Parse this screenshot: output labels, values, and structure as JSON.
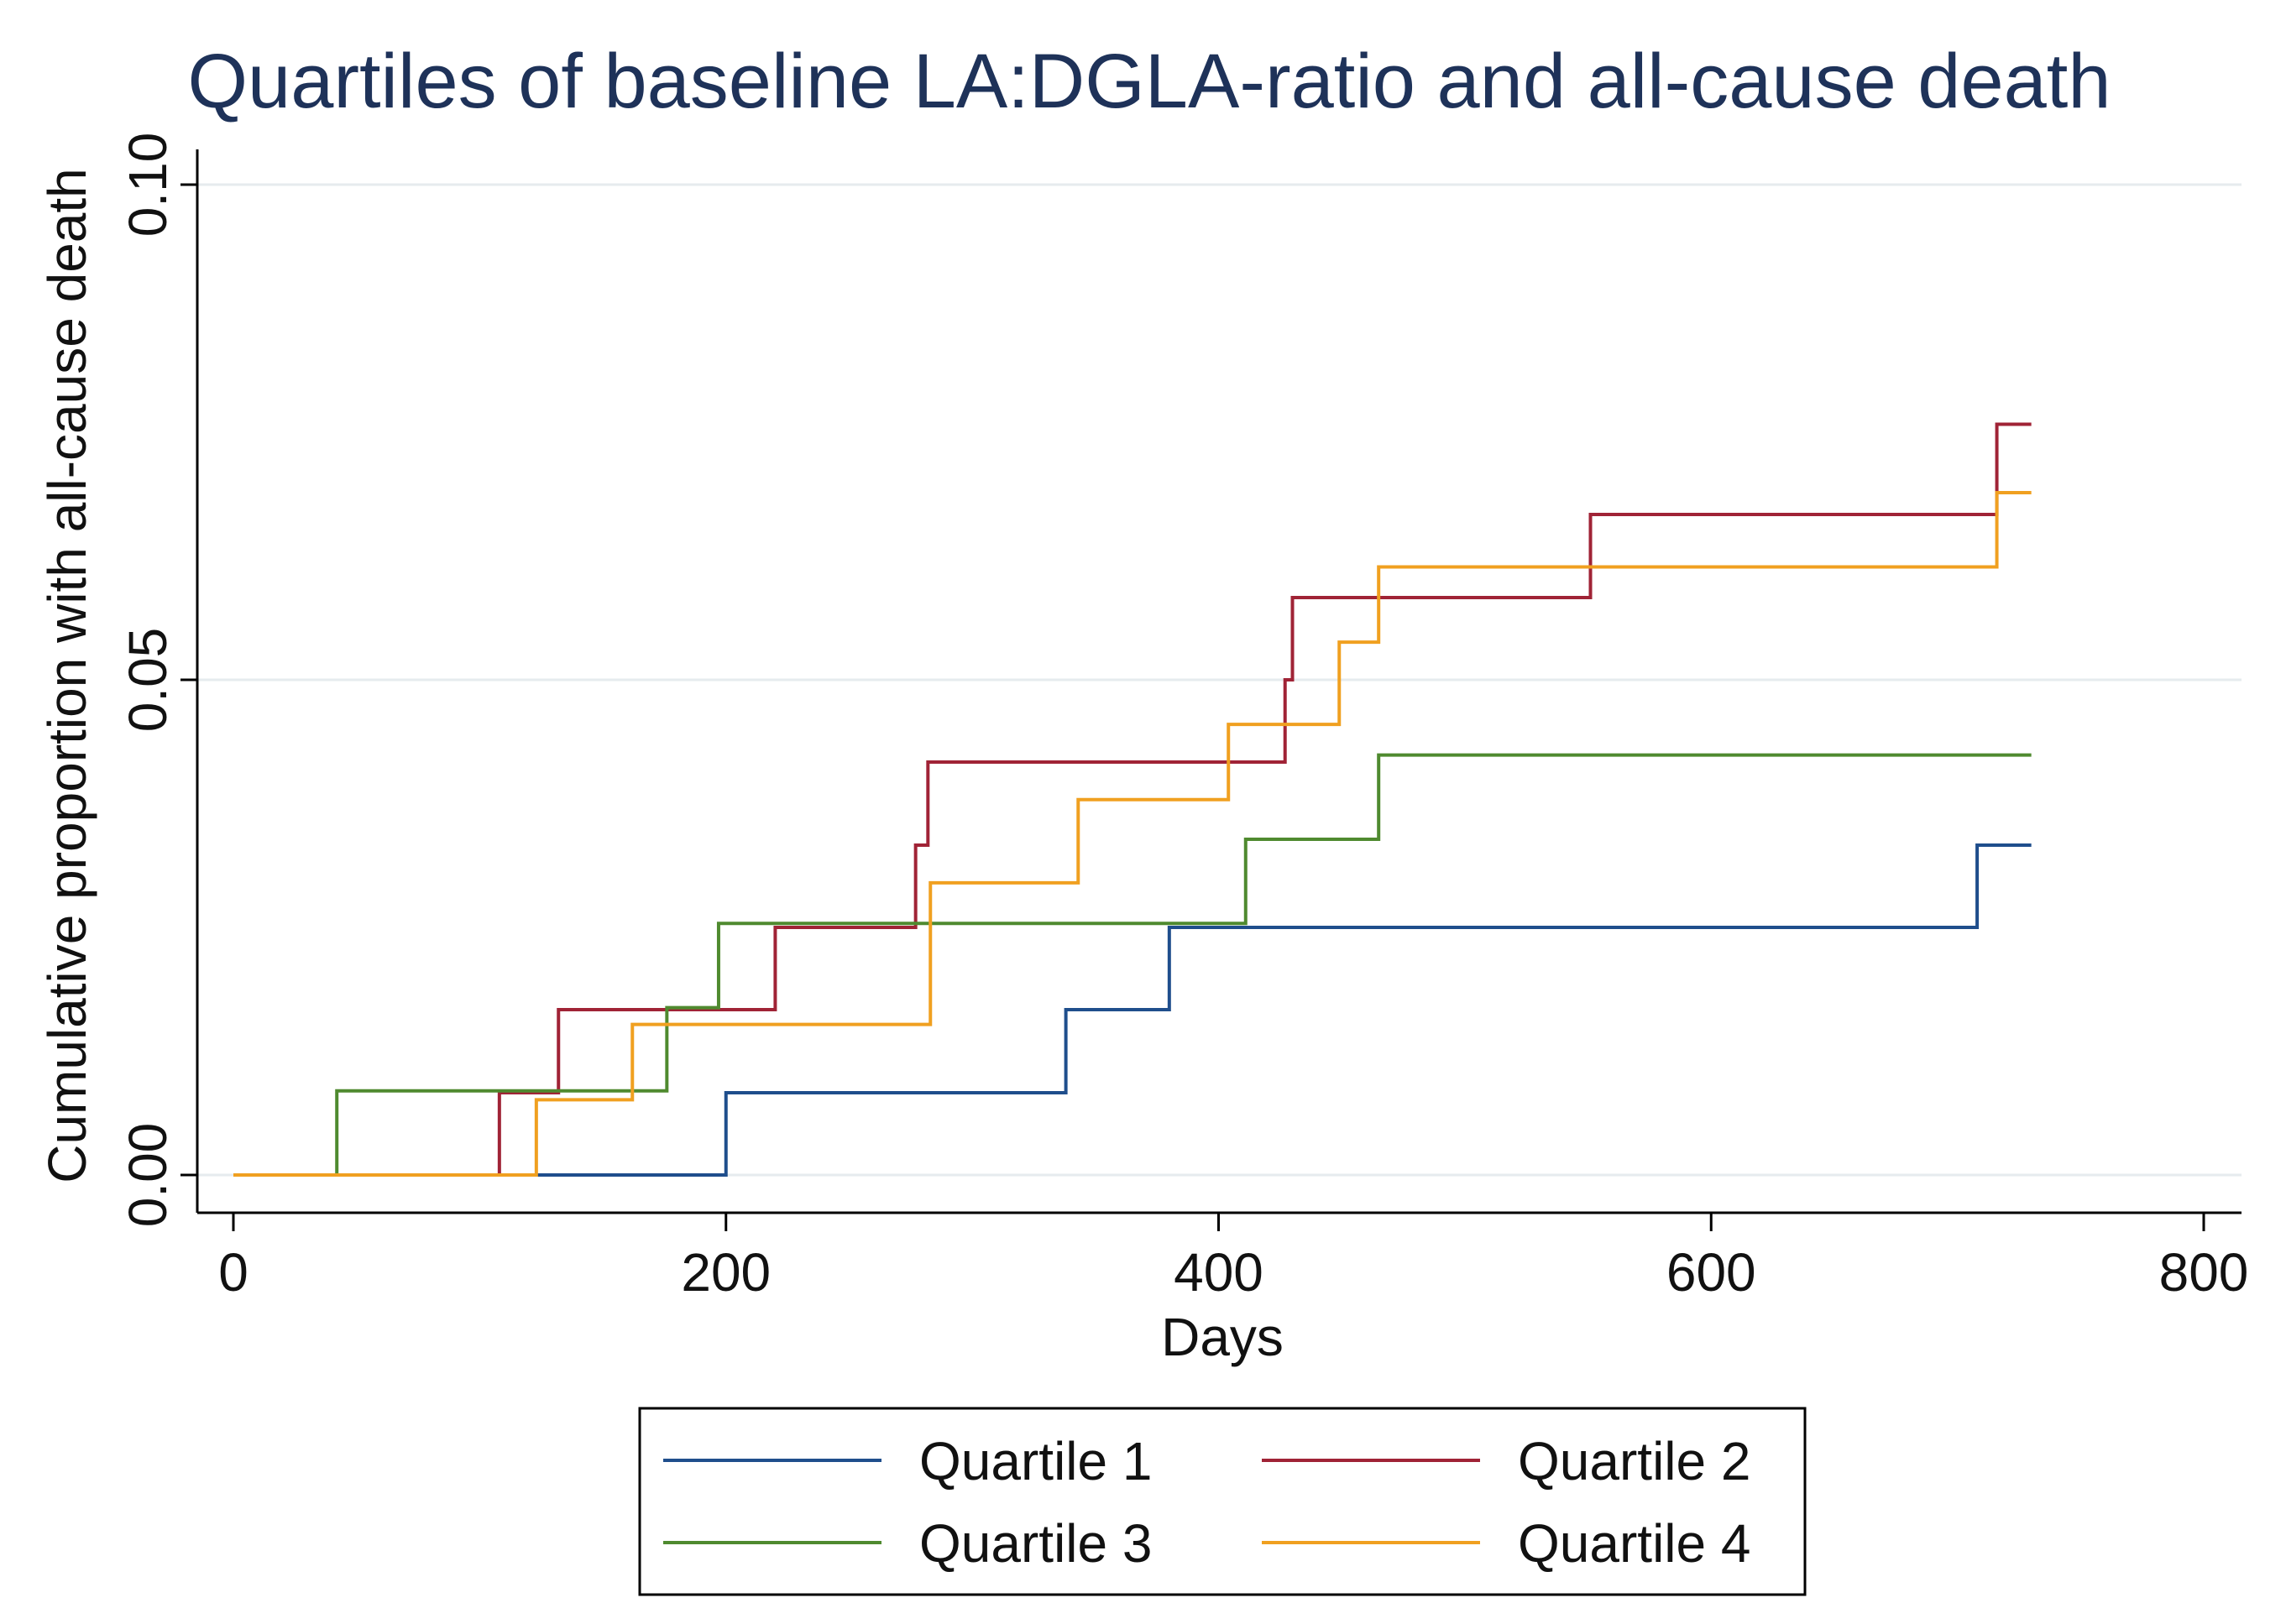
{
  "chart_data": {
    "type": "line",
    "step": true,
    "title": "Quartiles of baseline LA:DGLA-ratio and all-cause death",
    "xlabel": "Days",
    "ylabel": "Cumulative proportion with all-cause death",
    "xlim": [
      0,
      800
    ],
    "ylim": [
      0,
      0.1
    ],
    "xticks": [
      0,
      200,
      400,
      600,
      800
    ],
    "xtick_labels": [
      "0",
      "200",
      "400",
      "600",
      "800"
    ],
    "yticks": [
      0,
      0.05,
      0.1
    ],
    "ytick_labels": [
      "0.00",
      "0.05",
      "0.10"
    ],
    "grid": true,
    "legend_position": "bottom",
    "series": [
      {
        "name": "Quartile 1",
        "color": "#1f4e8c",
        "x": [
          0,
          200,
          338,
          380,
          708,
          730
        ],
        "y": [
          0.0,
          0.0083,
          0.0167,
          0.025,
          0.0333,
          0.0333
        ]
      },
      {
        "name": "Quartile 2",
        "color": "#a02336",
        "x": [
          0,
          108,
          132,
          220,
          277,
          282,
          427,
          430,
          551,
          716,
          730
        ],
        "y": [
          0.0,
          0.0083,
          0.0167,
          0.025,
          0.0333,
          0.0417,
          0.05,
          0.0583,
          0.0667,
          0.0758,
          0.0758
        ]
      },
      {
        "name": "Quartile 3",
        "color": "#4f8a2f",
        "x": [
          0,
          42,
          176,
          197,
          411,
          465,
          730
        ],
        "y": [
          0.0,
          0.0085,
          0.0169,
          0.0254,
          0.0339,
          0.0424,
          0.0424
        ]
      },
      {
        "name": "Quartile 4",
        "color": "#f0a020",
        "x": [
          0,
          123,
          162,
          283,
          343,
          404,
          449,
          465,
          716,
          730
        ],
        "y": [
          0.0,
          0.0076,
          0.0152,
          0.0295,
          0.0379,
          0.0455,
          0.0538,
          0.0614,
          0.0689,
          0.0689
        ]
      }
    ]
  }
}
